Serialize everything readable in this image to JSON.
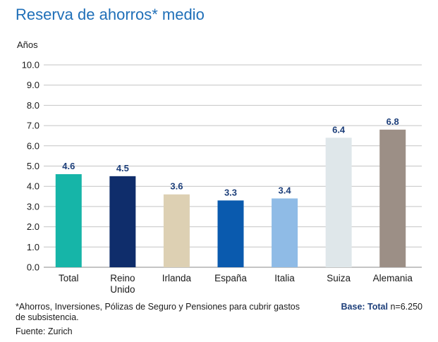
{
  "chart_data": {
    "type": "bar",
    "title": "Reserva de ahorros* medio",
    "ylabel": "Años",
    "ylim": [
      0,
      10
    ],
    "yticks": [
      "0.0",
      "1.0",
      "2.0",
      "3.0",
      "4.0",
      "5.0",
      "6.0",
      "7.0",
      "8.0",
      "9.0",
      "10.0"
    ],
    "grid": true,
    "categories": [
      [
        "Total"
      ],
      [
        "Reino",
        "Unido"
      ],
      [
        "Irlanda"
      ],
      [
        "España"
      ],
      [
        "Italia"
      ],
      [
        "Suiza"
      ],
      [
        "Alemania"
      ]
    ],
    "values": [
      4.6,
      4.5,
      3.6,
      3.3,
      3.4,
      6.4,
      6.8
    ],
    "value_labels": [
      "4.6",
      "4.5",
      "3.6",
      "3.3",
      "3.4",
      "6.4",
      "6.8"
    ],
    "colors": [
      "#16b5a8",
      "#0f2d6b",
      "#ddd0b3",
      "#0a5aae",
      "#8fbbe6",
      "#dfe7ea",
      "#9c8f86"
    ]
  },
  "footnote": "*Ahorros, Inversiones, Pólizas de Seguro y Pensiones para cubrir gastos de subsistencia.",
  "base": {
    "label": "Base: Total",
    "value": "n=6.250"
  },
  "source": "Fuente: Zurich"
}
